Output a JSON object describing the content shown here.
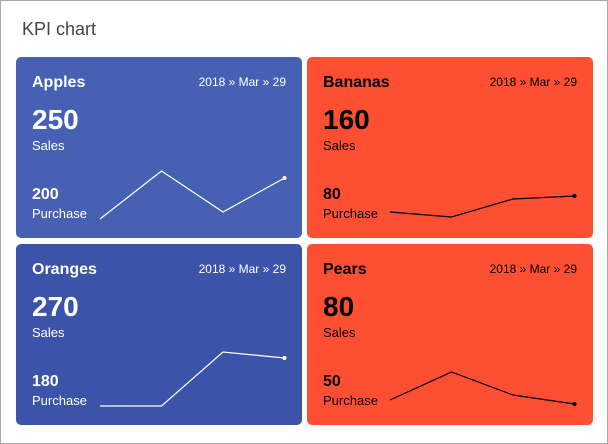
{
  "title": "KPI chart",
  "cards": [
    {
      "name": "Apples",
      "date": "2018 » Mar » 29",
      "sales": "250",
      "sales_label": "Sales",
      "purchase": "200",
      "purchase_label": "Purchase",
      "color": "#4661b4",
      "text_color": "#ffffff",
      "trend": [
        0,
        48,
        7,
        41
      ]
    },
    {
      "name": "Bananas",
      "date": "2018 » Mar » 29",
      "sales": "160",
      "sales_label": "Sales",
      "purchase": "80",
      "purchase_label": "Purchase",
      "color": "#ff4f33",
      "text_color": "#000000",
      "trend": [
        5,
        0,
        18,
        21
      ]
    },
    {
      "name": "Oranges",
      "date": "2018 » Mar » 29",
      "sales": "270",
      "sales_label": "Sales",
      "purchase": "180",
      "purchase_label": "Purchase",
      "color": "#3b53a8",
      "text_color": "#ffffff",
      "trend": [
        0,
        0,
        54,
        48
      ]
    },
    {
      "name": "Pears",
      "date": "2018 » Mar » 29",
      "sales": "80",
      "sales_label": "Sales",
      "purchase": "50",
      "purchase_label": "Purchase",
      "color": "#ff4f33",
      "text_color": "#000000",
      "trend": [
        4,
        32,
        9,
        0
      ]
    }
  ]
}
